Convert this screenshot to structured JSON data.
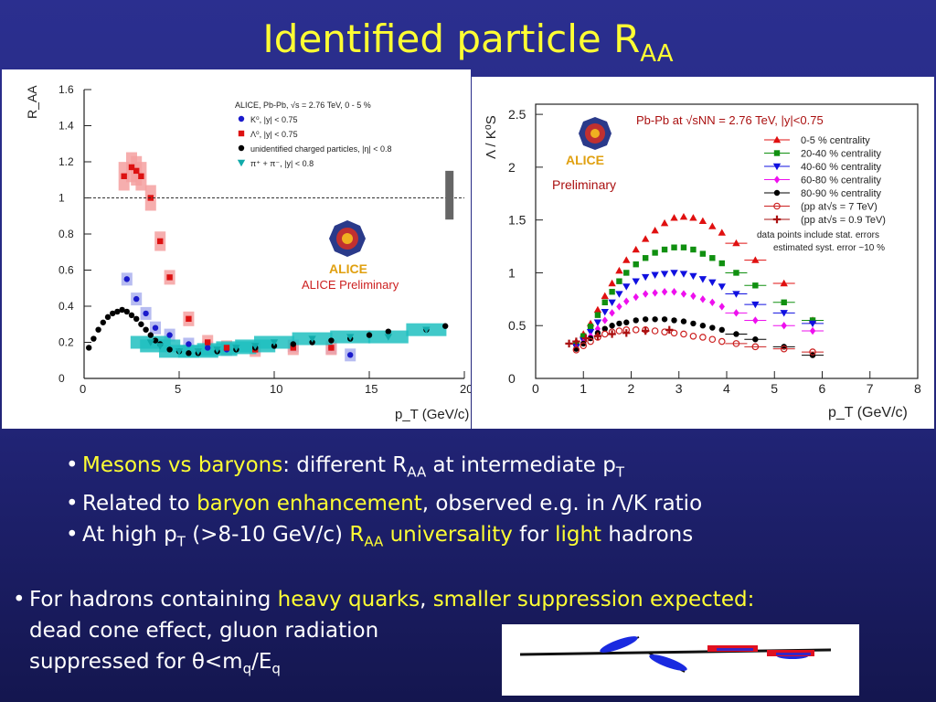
{
  "title": {
    "main": "Identified particle R",
    "sub": "AA"
  },
  "chart_data": [
    {
      "type": "scatter",
      "ylabel": "R_AA",
      "xlabel": "p_T (GeV/c)",
      "xlim": [
        0,
        20
      ],
      "ylim": [
        0,
        1.6
      ],
      "xticks": [
        "0",
        "5",
        "10",
        "15",
        "20"
      ],
      "yticks": [
        "0",
        "0.2",
        "0.4",
        "0.6",
        "0.8",
        "1",
        "1.2",
        "1.4",
        "1.6"
      ],
      "legend_header": "ALICE, Pb-Pb, √s = 2.76 TeV, 0 - 5 %",
      "legend_placement": "top-right",
      "preliminary_label": "ALICE Preliminary",
      "logo_text": "ALICE",
      "reference_line": 1,
      "series": [
        {
          "name": "K⁰, |y| < 0.75",
          "color": "#1a1acc",
          "x": [
            2.25,
            2.75,
            3.25,
            3.75,
            4.5,
            5.5,
            6.5,
            7.5,
            9,
            11,
            13,
            14
          ],
          "y": [
            0.55,
            0.44,
            0.36,
            0.28,
            0.24,
            0.19,
            0.17,
            0.16,
            0.17,
            0.18,
            0.17,
            0.13
          ]
        },
        {
          "name": "Λ⁰, |y| < 0.75",
          "color": "#dd1111",
          "x": [
            2.1,
            2.5,
            2.75,
            3.0,
            3.5,
            4.0,
            4.5,
            5.5,
            6.5,
            7.5,
            9,
            11,
            13
          ],
          "y": [
            1.12,
            1.17,
            1.15,
            1.12,
            1.0,
            0.76,
            0.56,
            0.33,
            0.2,
            0.17,
            0.16,
            0.17,
            0.17
          ]
        },
        {
          "name": "unidentified charged particles, |η| < 0.8",
          "color": "#000000",
          "x": [
            0.25,
            0.5,
            0.75,
            1.0,
            1.25,
            1.5,
            1.75,
            2.0,
            2.25,
            2.5,
            2.75,
            3.0,
            3.25,
            3.5,
            3.75,
            4.0,
            4.5,
            5.0,
            5.5,
            6,
            7,
            8,
            9,
            10,
            11,
            12,
            13,
            14,
            15,
            16,
            18,
            19
          ],
          "y": [
            0.17,
            0.22,
            0.27,
            0.31,
            0.34,
            0.36,
            0.37,
            0.38,
            0.37,
            0.35,
            0.33,
            0.3,
            0.27,
            0.24,
            0.21,
            0.19,
            0.16,
            0.15,
            0.14,
            0.14,
            0.15,
            0.16,
            0.17,
            0.18,
            0.19,
            0.2,
            0.21,
            0.22,
            0.24,
            0.26,
            0.27,
            0.29
          ]
        },
        {
          "name": "π⁺ + π⁻, |y| < 0.8",
          "color": "#11aaaa",
          "x": [
            3.5,
            4,
            5,
            6,
            7,
            8,
            9,
            10,
            12,
            14,
            16,
            18
          ],
          "y": [
            0.2,
            0.18,
            0.15,
            0.15,
            0.16,
            0.17,
            0.18,
            0.2,
            0.22,
            0.23,
            0.23,
            0.27
          ]
        }
      ]
    },
    {
      "type": "scatter",
      "ylabel": "Λ / K⁰S",
      "xlabel": "p_T (GeV/c)",
      "xlim": [
        0,
        8
      ],
      "ylim": [
        0,
        2.7
      ],
      "xticks": [
        "0",
        "1",
        "2",
        "3",
        "4",
        "5",
        "6",
        "7",
        "8"
      ],
      "yticks": [
        "0",
        "0.5",
        "1",
        "1.5",
        "2",
        "2.5"
      ],
      "legend_header": "Pb-Pb at √sNN = 2.76 TeV, |y|<0.75",
      "legend_placement": "top-right",
      "preliminary_label": "Preliminary",
      "logo_text": "ALICE",
      "notes": [
        "data points include stat. errors",
        "estimated syst. error ~10 %"
      ],
      "series": [
        {
          "name": "0-5 %     centrality",
          "color": "#e01010",
          "marker": "triangle-up",
          "x": [
            0.85,
            1.0,
            1.15,
            1.3,
            1.45,
            1.6,
            1.75,
            1.9,
            2.1,
            2.3,
            2.5,
            2.7,
            2.9,
            3.1,
            3.3,
            3.5,
            3.7,
            3.9,
            4.2,
            4.6,
            5.2,
            5.8
          ],
          "y": [
            0.35,
            0.42,
            0.52,
            0.65,
            0.78,
            0.9,
            1.02,
            1.12,
            1.22,
            1.32,
            1.4,
            1.47,
            1.52,
            1.53,
            1.52,
            1.49,
            1.44,
            1.38,
            1.28,
            1.12,
            0.9,
            0.55
          ]
        },
        {
          "name": "20-40 % centrality",
          "color": "#109010",
          "marker": "square",
          "x": [
            0.85,
            1.0,
            1.15,
            1.3,
            1.45,
            1.6,
            1.75,
            1.9,
            2.1,
            2.3,
            2.5,
            2.7,
            2.9,
            3.1,
            3.3,
            3.5,
            3.7,
            3.9,
            4.2,
            4.6,
            5.2,
            5.8
          ],
          "y": [
            0.33,
            0.4,
            0.49,
            0.6,
            0.72,
            0.82,
            0.92,
            1.0,
            1.08,
            1.14,
            1.19,
            1.22,
            1.24,
            1.24,
            1.22,
            1.18,
            1.14,
            1.09,
            1.0,
            0.88,
            0.72,
            0.55
          ]
        },
        {
          "name": "40-60 % centrality",
          "color": "#1010e0",
          "marker": "triangle-down",
          "x": [
            0.85,
            1.0,
            1.15,
            1.3,
            1.45,
            1.6,
            1.75,
            1.9,
            2.1,
            2.3,
            2.5,
            2.7,
            2.9,
            3.1,
            3.3,
            3.5,
            3.7,
            3.9,
            4.2,
            4.6,
            5.2,
            5.8
          ],
          "y": [
            0.3,
            0.36,
            0.44,
            0.53,
            0.63,
            0.72,
            0.8,
            0.87,
            0.92,
            0.96,
            0.98,
            0.99,
            1.0,
            0.99,
            0.97,
            0.94,
            0.91,
            0.87,
            0.8,
            0.7,
            0.62,
            0.52
          ]
        },
        {
          "name": "60-80 % centrality",
          "color": "#ee10ee",
          "marker": "diamond",
          "x": [
            0.85,
            1.0,
            1.15,
            1.3,
            1.45,
            1.6,
            1.75,
            1.9,
            2.1,
            2.3,
            2.5,
            2.7,
            2.9,
            3.1,
            3.3,
            3.5,
            3.7,
            3.9,
            4.2,
            4.6,
            5.2,
            5.8
          ],
          "y": [
            0.29,
            0.34,
            0.4,
            0.47,
            0.55,
            0.62,
            0.68,
            0.73,
            0.77,
            0.8,
            0.81,
            0.82,
            0.82,
            0.8,
            0.78,
            0.75,
            0.72,
            0.68,
            0.62,
            0.55,
            0.5,
            0.45
          ]
        },
        {
          "name": "80-90 % centrality",
          "color": "#000000",
          "marker": "circle",
          "x": [
            0.85,
            1.0,
            1.15,
            1.3,
            1.45,
            1.6,
            1.75,
            1.9,
            2.1,
            2.3,
            2.5,
            2.7,
            2.9,
            3.1,
            3.3,
            3.5,
            3.7,
            3.9,
            4.2,
            4.6,
            5.2,
            5.8
          ],
          "y": [
            0.28,
            0.33,
            0.38,
            0.43,
            0.47,
            0.5,
            0.52,
            0.53,
            0.55,
            0.56,
            0.56,
            0.56,
            0.55,
            0.54,
            0.52,
            0.5,
            0.48,
            0.46,
            0.42,
            0.37,
            0.3,
            0.22
          ]
        },
        {
          "name": "(pp at√s = 7 TeV)",
          "color": "#cc2020",
          "marker": "open-circle",
          "x": [
            0.85,
            1.0,
            1.15,
            1.3,
            1.45,
            1.6,
            1.75,
            1.9,
            2.1,
            2.3,
            2.5,
            2.7,
            2.9,
            3.1,
            3.3,
            3.5,
            3.7,
            3.9,
            4.2,
            4.6,
            5.2,
            5.8
          ],
          "y": [
            0.27,
            0.31,
            0.35,
            0.39,
            0.42,
            0.44,
            0.45,
            0.46,
            0.46,
            0.46,
            0.45,
            0.44,
            0.43,
            0.42,
            0.4,
            0.39,
            0.37,
            0.35,
            0.33,
            0.3,
            0.28,
            0.25
          ]
        },
        {
          "name": "(pp at√s = 0.9 TeV)",
          "color": "#aa1010",
          "marker": "star",
          "x": [
            0.7,
            0.85,
            1.05,
            1.3,
            1.6,
            1.9,
            2.3,
            2.8
          ],
          "y": [
            0.33,
            0.35,
            0.38,
            0.4,
            0.42,
            0.43,
            0.45,
            0.46
          ]
        }
      ]
    }
  ],
  "bullets": [
    {
      "hl": "Mesons vs baryons",
      "t1": ": different R",
      "s1": "AA",
      "t2": " at intermediate p",
      "s2": "T"
    },
    {
      "t1": "Related to ",
      "hl": "baryon enhancement",
      "t2": ", observed e.g. in Λ/K ratio"
    },
    {
      "t1": "At high p",
      "s1": "T",
      "t2": " (>8-10 GeV/c) ",
      "hl1": "R",
      "hs1": "AA",
      "hl2": " universality",
      "t3": " for ",
      "hl3": "light",
      "t4": " hadrons"
    }
  ],
  "bottom": {
    "t1": "For hadrons containing ",
    "hl1": "heavy quarks",
    "t2": ", ",
    "hl2": "smaller suppression expected:",
    "line2": "dead cone effect, gluon radiation",
    "line3a": "suppressed for θ<m",
    "line3s1": "q",
    "line3b": "/E",
    "line3s2": "q"
  },
  "colors": {
    "accent": "#ffff33",
    "background": "#23267c"
  }
}
